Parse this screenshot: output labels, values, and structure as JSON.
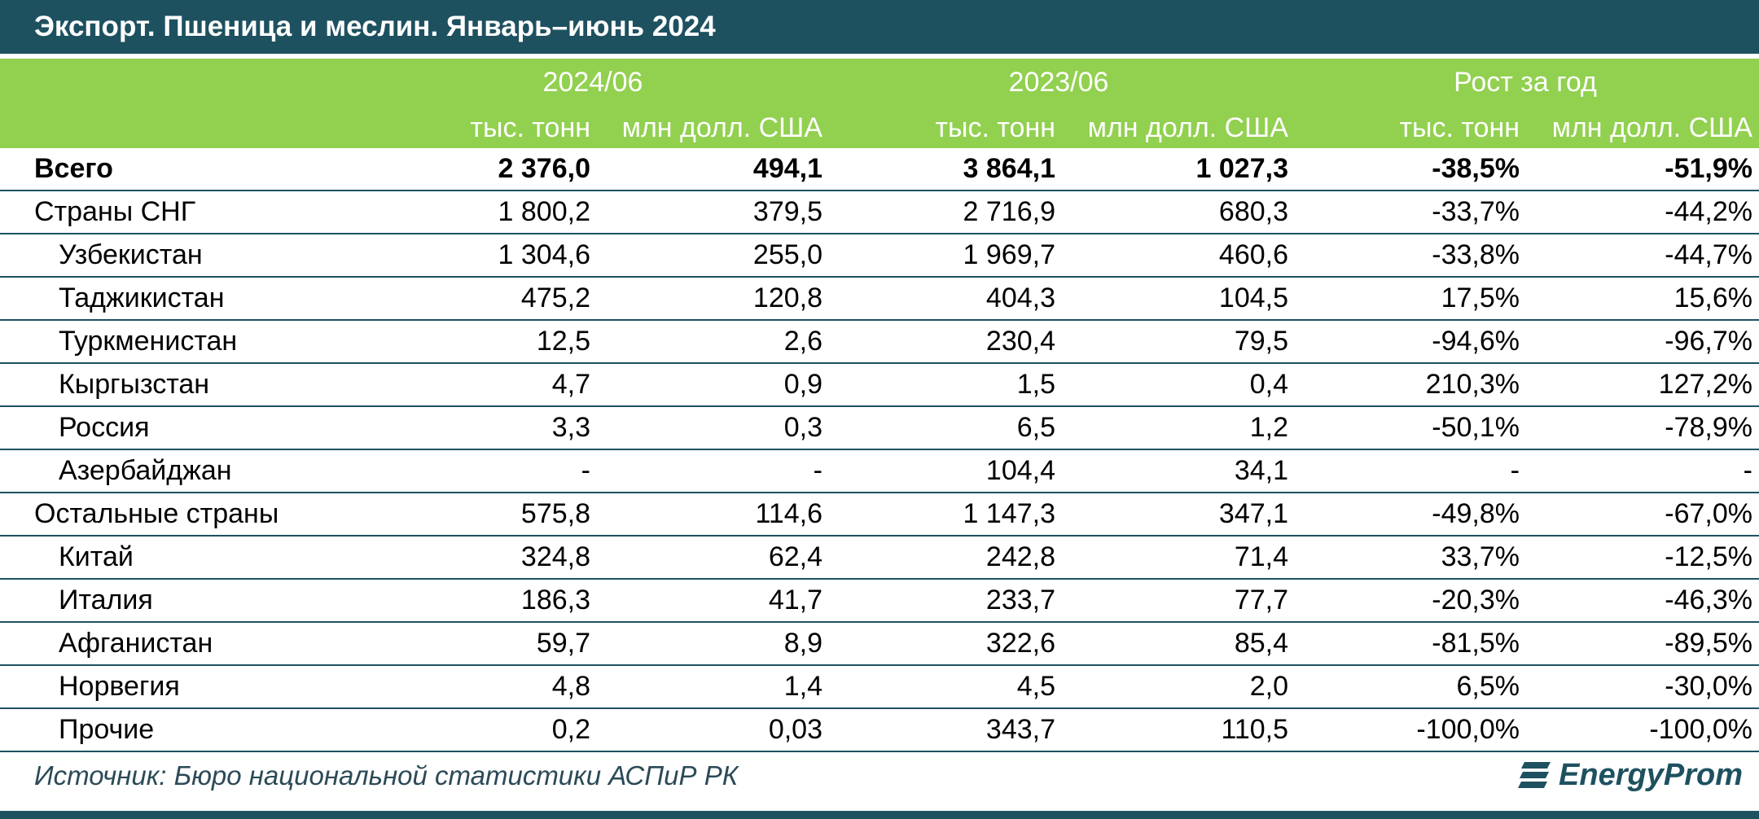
{
  "title": "Экспорт. Пшеница и меслин. Январь–июнь 2024",
  "groups": [
    "2024/06",
    "2023/06",
    "Рост за год"
  ],
  "units": [
    "тыс. тонн",
    "млн долл. США",
    "тыс. тонн",
    "млн долл. США",
    "тыс. тонн",
    "млн долл. США"
  ],
  "source": "Источник: Бюро национальной статистики АСПиР РК",
  "logo_text": "EnergyProm",
  "colors": {
    "header_dark": "#1e5160",
    "header_green": "#92d050"
  },
  "chart_data": {
    "type": "table",
    "title": "Экспорт. Пшеница и меслин. Январь–июнь 2024",
    "columns": [
      "2024/06 тыс. тонн",
      "2024/06 млн долл. США",
      "2023/06 тыс. тонн",
      "2023/06 млн долл. США",
      "Рост за год тыс. тонн",
      "Рост за год млн долл. США"
    ],
    "rows": [
      {
        "label": "Всего",
        "level": 0,
        "bold": true,
        "values": [
          "2 376,0",
          "494,1",
          "3 864,1",
          "1 027,3",
          "-38,5%",
          "-51,9%"
        ]
      },
      {
        "label": "Страны СНГ",
        "level": 0,
        "bold": false,
        "values": [
          "1 800,2",
          "379,5",
          "2 716,9",
          "680,3",
          "-33,7%",
          "-44,2%"
        ]
      },
      {
        "label": "Узбекистан",
        "level": 1,
        "bold": false,
        "values": [
          "1 304,6",
          "255,0",
          "1 969,7",
          "460,6",
          "-33,8%",
          "-44,7%"
        ]
      },
      {
        "label": "Таджикистан",
        "level": 1,
        "bold": false,
        "values": [
          "475,2",
          "120,8",
          "404,3",
          "104,5",
          "17,5%",
          "15,6%"
        ]
      },
      {
        "label": "Туркменистан",
        "level": 1,
        "bold": false,
        "values": [
          "12,5",
          "2,6",
          "230,4",
          "79,5",
          "-94,6%",
          "-96,7%"
        ]
      },
      {
        "label": "Кыргызстан",
        "level": 1,
        "bold": false,
        "values": [
          "4,7",
          "0,9",
          "1,5",
          "0,4",
          "210,3%",
          "127,2%"
        ]
      },
      {
        "label": "Россия",
        "level": 1,
        "bold": false,
        "values": [
          "3,3",
          "0,3",
          "6,5",
          "1,2",
          "-50,1%",
          "-78,9%"
        ]
      },
      {
        "label": "Азербайджан",
        "level": 1,
        "bold": false,
        "values": [
          "-",
          "-",
          "104,4",
          "34,1",
          "-",
          "-"
        ]
      },
      {
        "label": "Остальные страны",
        "level": 0,
        "bold": false,
        "values": [
          "575,8",
          "114,6",
          "1 147,3",
          "347,1",
          "-49,8%",
          "-67,0%"
        ]
      },
      {
        "label": "Китай",
        "level": 1,
        "bold": false,
        "values": [
          "324,8",
          "62,4",
          "242,8",
          "71,4",
          "33,7%",
          "-12,5%"
        ]
      },
      {
        "label": "Италия",
        "level": 1,
        "bold": false,
        "values": [
          "186,3",
          "41,7",
          "233,7",
          "77,7",
          "-20,3%",
          "-46,3%"
        ]
      },
      {
        "label": "Афганистан",
        "level": 1,
        "bold": false,
        "values": [
          "59,7",
          "8,9",
          "322,6",
          "85,4",
          "-81,5%",
          "-89,5%"
        ]
      },
      {
        "label": "Норвегия",
        "level": 1,
        "bold": false,
        "values": [
          "4,8",
          "1,4",
          "4,5",
          "2,0",
          "6,5%",
          "-30,0%"
        ]
      },
      {
        "label": "Прочие",
        "level": 1,
        "bold": false,
        "values": [
          "0,2",
          "0,03",
          "343,7",
          "110,5",
          "-100,0%",
          "-100,0%"
        ]
      }
    ]
  }
}
